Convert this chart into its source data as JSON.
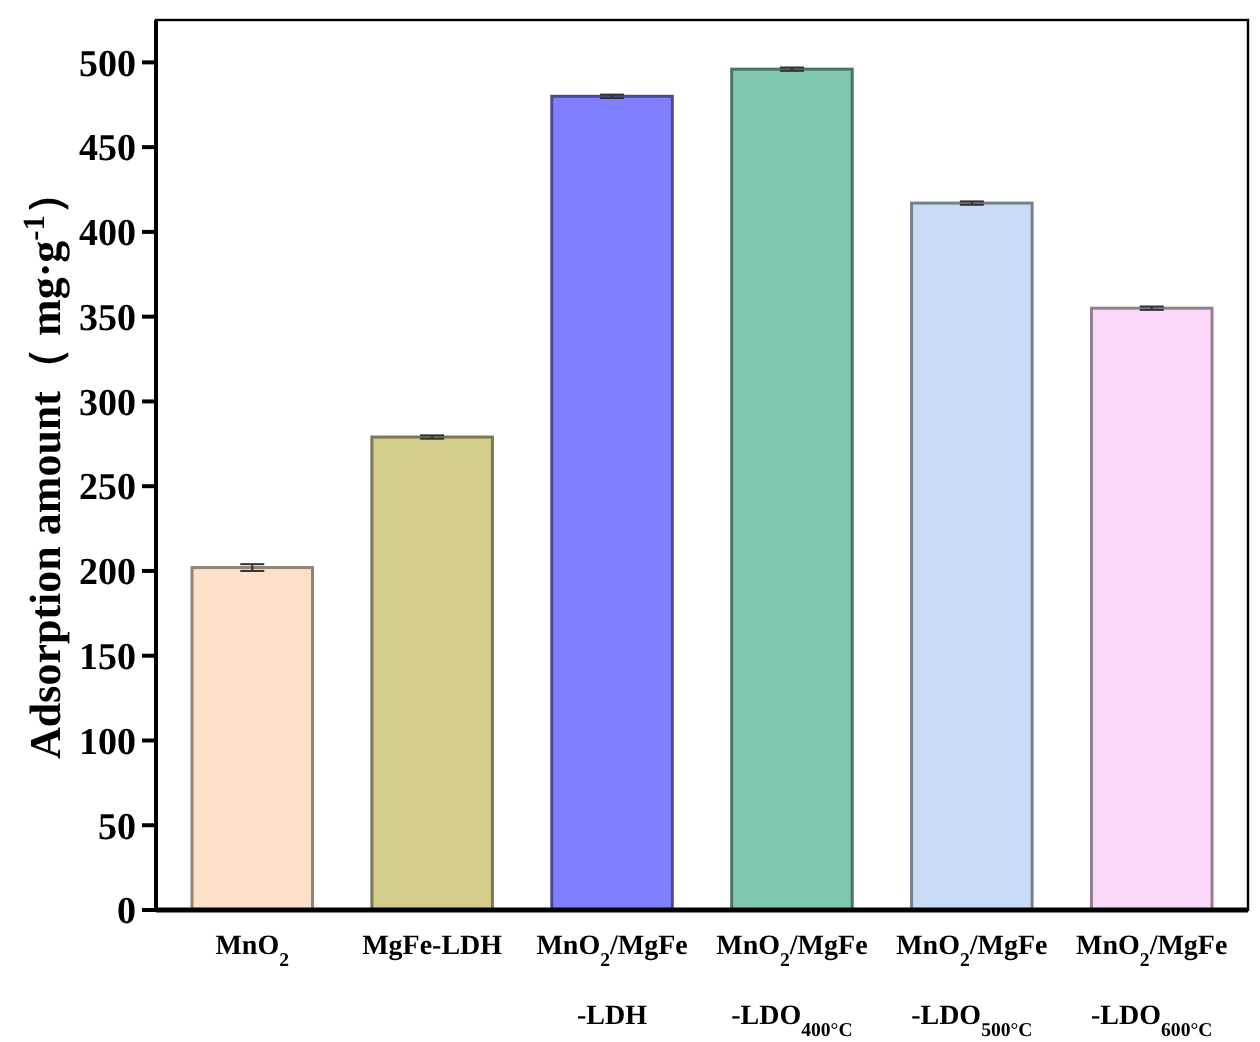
{
  "chart_data": {
    "type": "bar",
    "ylabel": "Adsorption amount（ mg·g$^{-1}$）",
    "categories": [
      "MnO$_{2}$",
      "MgFe-LDH",
      "MnO$_{2}$/MgFe\n-LDH",
      "MnO$_{2}$/MgFe\n-LDO$_{400°C}$",
      "MnO$_{2}$/MgFe\n-LDO$_{500°C}$",
      "MnO$_{2}$/MgFe\n-LDO$_{600°C}$"
    ],
    "values": [
      202,
      279,
      480,
      496,
      417,
      355
    ],
    "errors": [
      2,
      1,
      1,
      1,
      1,
      1
    ],
    "colors": [
      "#fde0c8",
      "#d3cc8a",
      "#7f7fff",
      "#80c6b0",
      "#cadcf5",
      "#fcd8f8"
    ],
    "ylim": [
      0,
      525
    ],
    "yticks": [
      0,
      50,
      100,
      150,
      200,
      250,
      300,
      350,
      400,
      450,
      500
    ],
    "grid": false
  }
}
